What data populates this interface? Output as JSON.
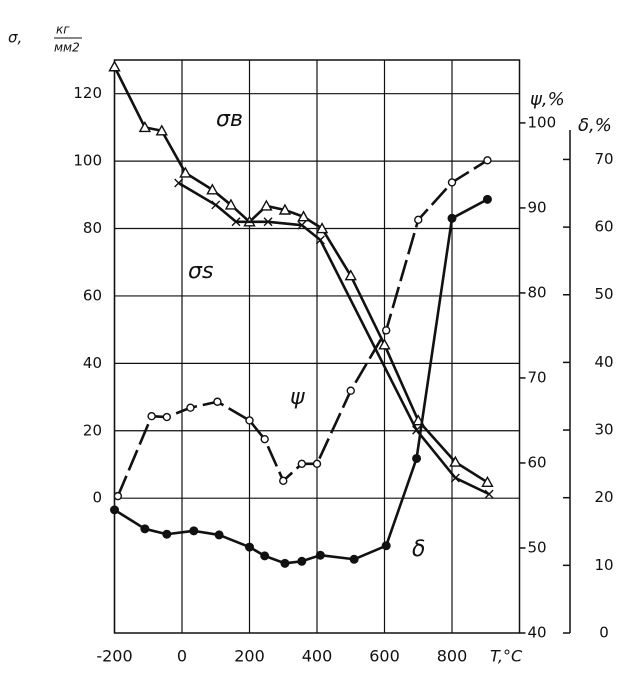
{
  "chart_data": {
    "type": "line",
    "y_label": {
      "symbol": "σ,",
      "numerator": "кг",
      "denominator": "мм2"
    },
    "y2_label": "ψ,%",
    "y3_label": "δ,%",
    "x_label": "T,°C",
    "xlim": [
      -200,
      1000
    ],
    "xticks": [
      -200,
      0,
      200,
      400,
      600,
      800
    ],
    "ylim": [
      -40,
      130
    ],
    "yticks": [
      0,
      20,
      40,
      60,
      80,
      100,
      120
    ],
    "y2lim": [
      40,
      107.4
    ],
    "y2ticks": [
      40,
      50,
      60,
      70,
      80,
      90,
      100
    ],
    "y3lim": [
      0,
      84.7
    ],
    "y3ticks": [
      0,
      10,
      20,
      30,
      40,
      50,
      60,
      70
    ],
    "grid": true,
    "series": [
      {
        "name": "σв",
        "color": "#111",
        "marker": "triangle",
        "x": [
          -200,
          -110,
          -60,
          10,
          90,
          145,
          200,
          250,
          305,
          360,
          415,
          500,
          600,
          700,
          810,
          905
        ],
        "values": [
          128,
          110,
          109,
          96.5,
          91.5,
          87,
          82,
          86.7,
          85.5,
          83.5,
          80,
          66,
          45.5,
          23,
          10.7,
          4.7
        ]
      },
      {
        "name": "σs",
        "color": "#111",
        "marker": "cross",
        "x": [
          -10,
          100,
          160,
          255,
          355,
          410,
          695,
          810,
          910
        ],
        "values": [
          93.5,
          87,
          82,
          82,
          81,
          76.6,
          20.2,
          6,
          1.2
        ]
      },
      {
        "name": "ψ",
        "color": "#111",
        "marker": "circle",
        "axis": "y2",
        "dashed": true,
        "x": [
          -190,
          -90,
          -45,
          25,
          105,
          200,
          245,
          300,
          355,
          400,
          500,
          605,
          700,
          800,
          905
        ],
        "values": [
          56.1,
          65.5,
          65.4,
          66.5,
          67.2,
          65,
          62.8,
          57.9,
          59.9,
          59.9,
          68.5,
          75.6,
          88.6,
          93,
          95.6
        ]
      },
      {
        "name": "δ",
        "color": "#111",
        "marker": "dot",
        "axis": "y3",
        "x": [
          -200,
          -110,
          -45,
          35,
          110,
          200,
          245,
          305,
          355,
          410,
          510,
          605,
          695,
          800,
          905
        ],
        "values": [
          18.2,
          15.4,
          14.6,
          15.1,
          14.5,
          12.7,
          11.4,
          10.3,
          10.6,
          11.5,
          10.9,
          12.9,
          25.8,
          61.3,
          64.1
        ]
      }
    ]
  }
}
